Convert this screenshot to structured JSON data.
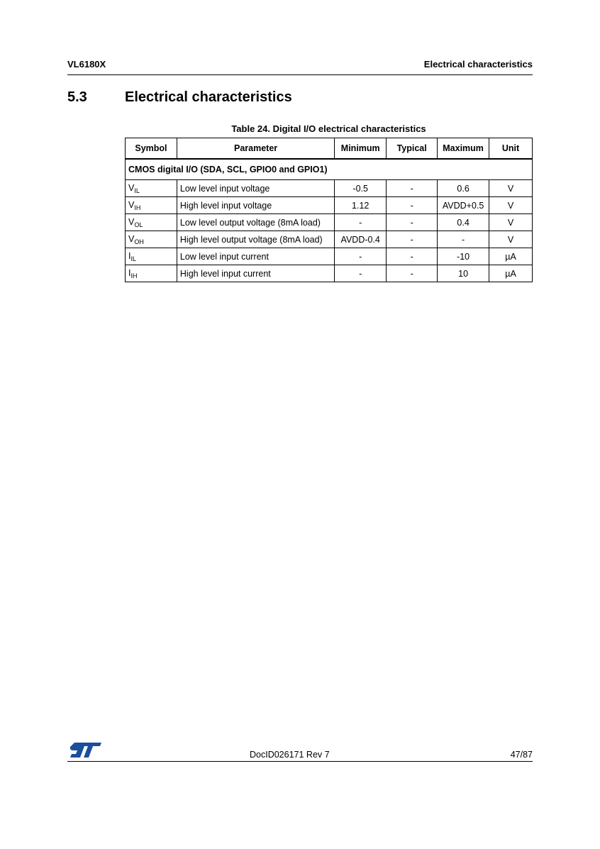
{
  "header": {
    "left": "VL6180X",
    "right": "Electrical characteristics"
  },
  "section": {
    "number": "5.3",
    "title": "Electrical characteristics"
  },
  "table": {
    "caption": "Table 24. Digital I/O electrical characteristics",
    "columns": [
      "Symbol",
      "Parameter",
      "Minimum",
      "Typical",
      "Maximum",
      "Unit"
    ],
    "section_label": "CMOS digital I/O (SDA, SCL, GPIO0 and GPIO1)",
    "rows": [
      {
        "sym": "V",
        "sub": "IL",
        "param": "Low level input voltage",
        "min": "-0.5",
        "typ": "-",
        "max": "0.6",
        "unit": "V"
      },
      {
        "sym": "V",
        "sub": "IH",
        "param": "High level input voltage",
        "min": "1.12",
        "typ": "-",
        "max": "AVDD+0.5",
        "unit": "V"
      },
      {
        "sym": "V",
        "sub": "OL",
        "param": "Low level output voltage (8mA load)",
        "min": "-",
        "typ": "-",
        "max": "0.4",
        "unit": "V"
      },
      {
        "sym": "V",
        "sub": "OH",
        "param": "High level output voltage (8mA load)",
        "min": "AVDD-0.4",
        "typ": "-",
        "max": "-",
        "unit": "V"
      },
      {
        "sym": "I",
        "sub": "IL",
        "param": "Low level input current",
        "min": "-",
        "typ": "-",
        "max": "-10",
        "unit": "µA"
      },
      {
        "sym": "I",
        "sub": "IH",
        "param": "High level input current",
        "min": "-",
        "typ": "-",
        "max": "10",
        "unit": "µA"
      }
    ]
  },
  "footer": {
    "logo": "ST",
    "doc_id": "DocID026171 Rev 7",
    "page": "47/87",
    "logo_color": "#1a4f9c"
  }
}
